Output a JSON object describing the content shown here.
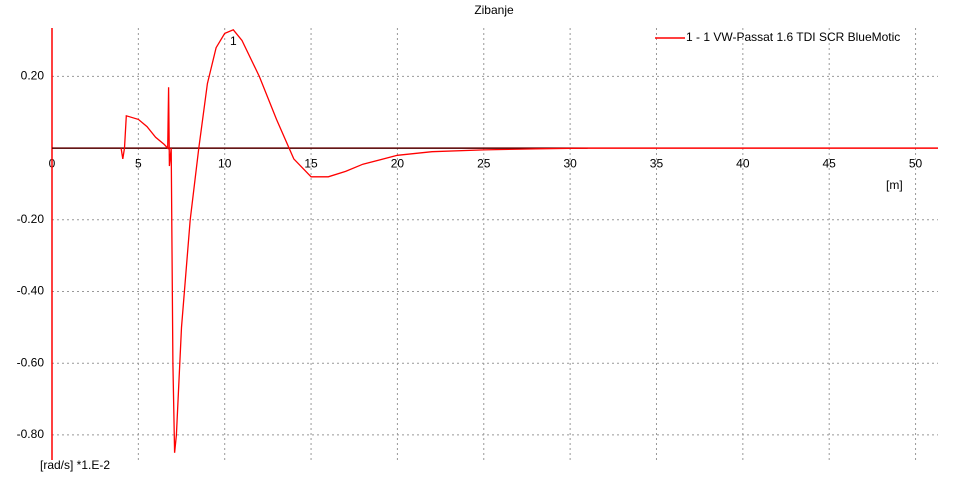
{
  "chart_data": {
    "type": "line",
    "title": "Zibanje",
    "x_label": "[m]",
    "y_label": "[rad/s] *1.E-2",
    "annotation": "1",
    "x": [
      4.0,
      4.1,
      4.2,
      4.3,
      5.0,
      5.5,
      6.0,
      6.5,
      6.7,
      6.75,
      6.8,
      6.9,
      7.0,
      7.1,
      7.2,
      7.5,
      8.0,
      8.5,
      9.0,
      9.5,
      10.0,
      10.5,
      11.0,
      12.0,
      13.0,
      14.0,
      15.0,
      16.0,
      17.0,
      18.0,
      20.0,
      22.0,
      25.0,
      28.0,
      31.0
    ],
    "series": [
      {
        "name": "1 - 1 VW-Passat 1.6 TDI SCR BlueMotic",
        "color": "#ff0000",
        "values": [
          0.0,
          -0.03,
          0.0,
          0.09,
          0.08,
          0.06,
          0.03,
          0.01,
          0.0,
          0.17,
          -0.05,
          0.0,
          -0.6,
          -0.85,
          -0.8,
          -0.5,
          -0.2,
          0.0,
          0.18,
          0.28,
          0.32,
          0.33,
          0.3,
          0.2,
          0.08,
          -0.03,
          -0.08,
          -0.08,
          -0.065,
          -0.045,
          -0.02,
          -0.01,
          -0.005,
          -0.002,
          0.0
        ]
      }
    ],
    "xlim": [
      0,
      51.3
    ],
    "xticks": [
      0,
      5,
      10,
      15,
      20,
      25,
      30,
      35,
      40,
      45,
      50
    ],
    "ylim": [
      -0.87,
      0.335
    ],
    "yticks": [
      {
        "value": 0.2,
        "label": "0.20"
      },
      {
        "value": -0.2,
        "label": "-0.20"
      },
      {
        "value": -0.4,
        "label": "-0.40"
      },
      {
        "value": -0.6,
        "label": "-0.60"
      },
      {
        "value": -0.8,
        "label": "-0.80"
      }
    ],
    "grid": true
  }
}
